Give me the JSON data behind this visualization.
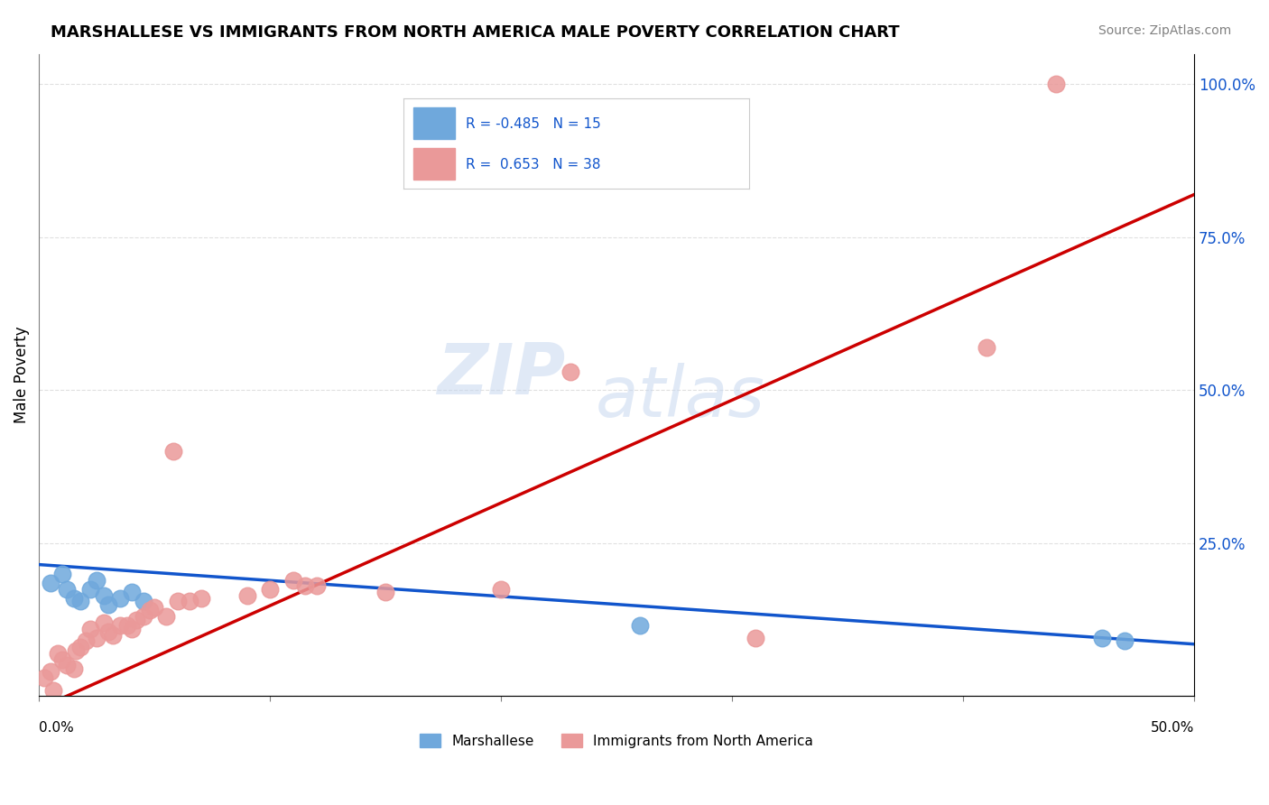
{
  "title": "MARSHALLESE VS IMMIGRANTS FROM NORTH AMERICA MALE POVERTY CORRELATION CHART",
  "source": "Source: ZipAtlas.com",
  "ylabel": "Male Poverty",
  "yticks": [
    0.0,
    0.25,
    0.5,
    0.75,
    1.0
  ],
  "ytick_labels": [
    "",
    "25.0%",
    "50.0%",
    "75.0%",
    "100.0%"
  ],
  "xlim": [
    0.0,
    0.5
  ],
  "ylim": [
    0.0,
    1.05
  ],
  "blue_color": "#6fa8dc",
  "pink_color": "#ea9999",
  "blue_line_color": "#1155cc",
  "pink_line_color": "#cc0000",
  "blue_line": [
    0.0,
    0.215,
    0.5,
    0.085
  ],
  "pink_line": [
    0.0,
    -0.02,
    0.5,
    0.82
  ],
  "marshallese_points": [
    [
      0.005,
      0.185
    ],
    [
      0.01,
      0.2
    ],
    [
      0.012,
      0.175
    ],
    [
      0.015,
      0.16
    ],
    [
      0.018,
      0.155
    ],
    [
      0.022,
      0.175
    ],
    [
      0.025,
      0.19
    ],
    [
      0.028,
      0.165
    ],
    [
      0.03,
      0.15
    ],
    [
      0.035,
      0.16
    ],
    [
      0.04,
      0.17
    ],
    [
      0.045,
      0.155
    ],
    [
      0.26,
      0.115
    ],
    [
      0.46,
      0.095
    ],
    [
      0.47,
      0.09
    ]
  ],
  "immigrants_points": [
    [
      0.002,
      0.03
    ],
    [
      0.005,
      0.04
    ],
    [
      0.006,
      0.01
    ],
    [
      0.008,
      0.07
    ],
    [
      0.01,
      0.06
    ],
    [
      0.012,
      0.05
    ],
    [
      0.015,
      0.045
    ],
    [
      0.016,
      0.075
    ],
    [
      0.018,
      0.08
    ],
    [
      0.02,
      0.09
    ],
    [
      0.022,
      0.11
    ],
    [
      0.025,
      0.095
    ],
    [
      0.028,
      0.12
    ],
    [
      0.03,
      0.105
    ],
    [
      0.032,
      0.1
    ],
    [
      0.035,
      0.115
    ],
    [
      0.038,
      0.115
    ],
    [
      0.04,
      0.11
    ],
    [
      0.042,
      0.125
    ],
    [
      0.045,
      0.13
    ],
    [
      0.048,
      0.14
    ],
    [
      0.05,
      0.145
    ],
    [
      0.055,
      0.13
    ],
    [
      0.058,
      0.4
    ],
    [
      0.06,
      0.155
    ],
    [
      0.065,
      0.155
    ],
    [
      0.07,
      0.16
    ],
    [
      0.09,
      0.165
    ],
    [
      0.1,
      0.175
    ],
    [
      0.11,
      0.19
    ],
    [
      0.115,
      0.18
    ],
    [
      0.12,
      0.18
    ],
    [
      0.15,
      0.17
    ],
    [
      0.2,
      0.175
    ],
    [
      0.23,
      0.53
    ],
    [
      0.31,
      0.095
    ],
    [
      0.41,
      0.57
    ],
    [
      0.44,
      1.0
    ]
  ]
}
